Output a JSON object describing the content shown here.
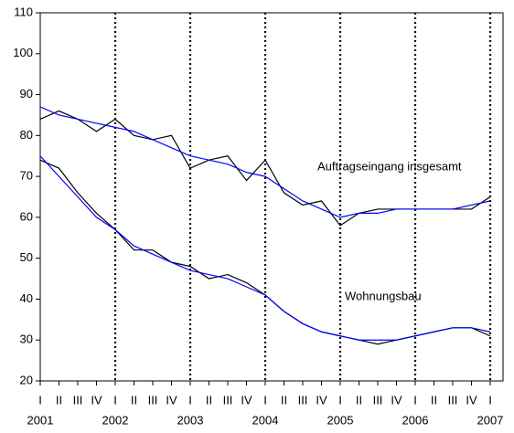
{
  "chart_data": {
    "type": "line",
    "categories": [
      "I",
      "II",
      "III",
      "IV",
      "I",
      "II",
      "III",
      "IV",
      "I",
      "II",
      "III",
      "IV",
      "I",
      "II",
      "III",
      "IV",
      "I",
      "II",
      "III",
      "IV",
      "I",
      "II",
      "III",
      "IV",
      "I"
    ],
    "years": [
      "2001",
      null,
      null,
      null,
      "2002",
      null,
      null,
      null,
      "2003",
      null,
      null,
      null,
      "2004",
      null,
      null,
      null,
      "2005",
      null,
      null,
      null,
      "2006",
      null,
      null,
      null,
      "2007"
    ],
    "series": [
      {
        "name": "Auftragseingang insgesamt",
        "color": "#000000",
        "trend_color": "#0000ff",
        "values": [
          84,
          86,
          84,
          81,
          84,
          80,
          79,
          80,
          72,
          74,
          75,
          69,
          74,
          66,
          63,
          64,
          58,
          61,
          62,
          62,
          62,
          62,
          62,
          62,
          65
        ],
        "trend": [
          87,
          85,
          84,
          83,
          82,
          81,
          79,
          77,
          75,
          74,
          73,
          71,
          70,
          67,
          64,
          62,
          60,
          61,
          61,
          62,
          62,
          62,
          62,
          63,
          64
        ]
      },
      {
        "name": "Wohnungsbau",
        "color": "#000000",
        "trend_color": "#0000ff",
        "values": [
          74,
          72,
          66,
          61,
          57,
          52,
          52,
          49,
          48,
          45,
          46,
          44,
          41,
          37,
          34,
          32,
          31,
          30,
          29,
          30,
          31,
          32,
          33,
          33,
          31
        ],
        "trend": [
          75,
          70,
          65,
          60,
          57,
          53,
          51,
          49,
          47,
          46,
          45,
          43,
          41,
          37,
          34,
          32,
          31,
          30,
          30,
          30,
          31,
          32,
          33,
          33,
          32
        ]
      }
    ],
    "ylim": [
      20,
      110
    ],
    "yticks": [
      20,
      30,
      40,
      50,
      60,
      70,
      80,
      90,
      100,
      110
    ],
    "year_lines": true
  }
}
